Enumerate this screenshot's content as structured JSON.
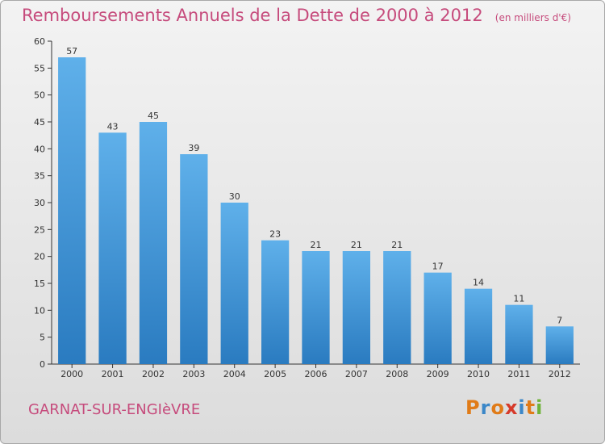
{
  "title": "Remboursements Annuels de la Dette de 2000 à 2012",
  "subtitle": "(en milliers d'€)",
  "commune": "GARNAT-SUR-ENGIèVRE",
  "logo": {
    "letters": [
      "P",
      "r",
      "o",
      "x",
      "i",
      "t",
      "i"
    ],
    "colors": [
      "#e07b18",
      "#3b87c8",
      "#e07b18",
      "#d63a2a",
      "#3b87c8",
      "#e07b18",
      "#6fb33a"
    ]
  },
  "colors": {
    "bar_top": "#5fb0ea",
    "bar_bottom": "#2a7bc0",
    "title": "#c64b7c"
  },
  "chart_data": {
    "type": "bar",
    "categories": [
      "2000",
      "2001",
      "2002",
      "2003",
      "2004",
      "2005",
      "2006",
      "2007",
      "2008",
      "2009",
      "2010",
      "2011",
      "2012"
    ],
    "values": [
      57,
      43,
      45,
      39,
      30,
      23,
      21,
      21,
      21,
      17,
      14,
      11,
      7
    ],
    "ylim": [
      0,
      60
    ],
    "yticks": [
      0,
      5,
      10,
      15,
      20,
      25,
      30,
      35,
      40,
      45,
      50,
      55,
      60
    ],
    "grid": false
  }
}
